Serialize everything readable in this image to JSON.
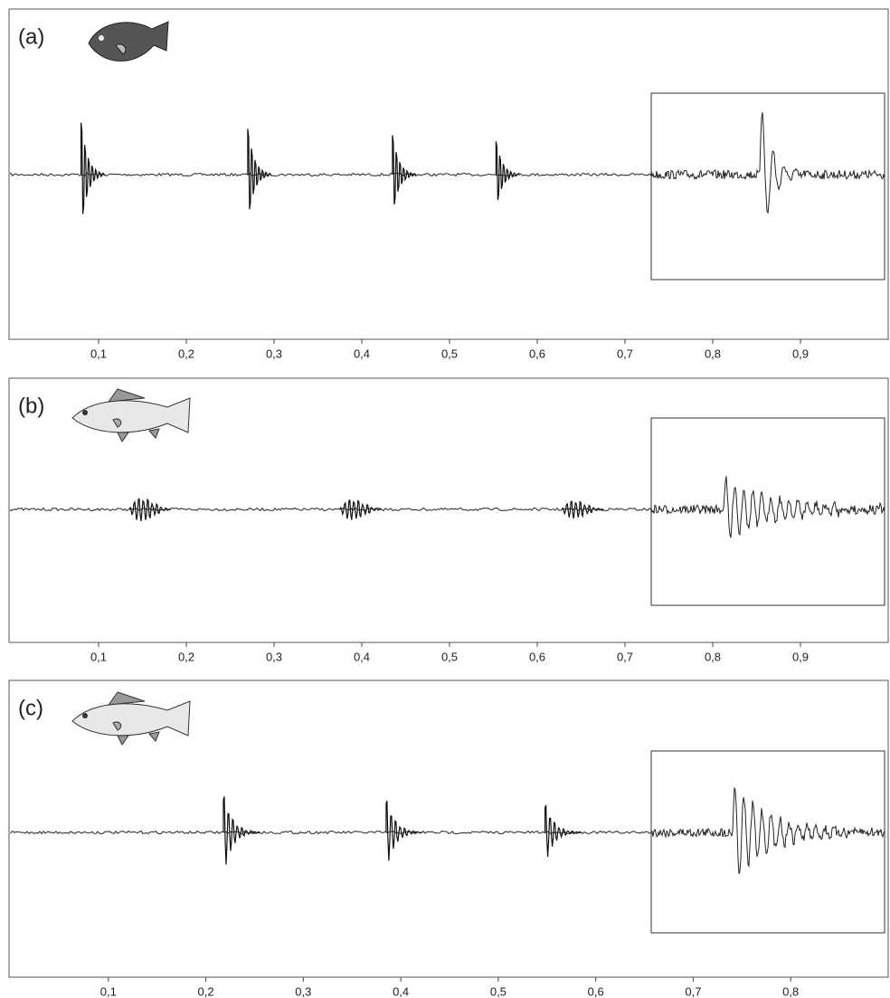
{
  "chart_data": [
    {
      "type": "waveform",
      "label": "(a)",
      "xlim": [
        0,
        1
      ],
      "xticks": [
        {
          "value": 0.1,
          "label": "0,1"
        },
        {
          "value": 0.2,
          "label": "0,2"
        },
        {
          "value": 0.3,
          "label": "0,3"
        },
        {
          "value": 0.4,
          "label": "0,4"
        },
        {
          "value": 0.5,
          "label": "0,5"
        },
        {
          "value": 0.6,
          "label": "0,6"
        },
        {
          "value": 0.7,
          "label": "0,7"
        },
        {
          "value": 0.8,
          "label": "0,8"
        },
        {
          "value": 0.9,
          "label": "0,9"
        }
      ],
      "pulses": [
        0.08,
        0.27,
        0.435,
        0.553
      ],
      "style": "click"
    },
    {
      "type": "waveform",
      "label": "(b)",
      "xlim": [
        0,
        1
      ],
      "xticks": [
        {
          "value": 0.1,
          "label": "0,1"
        },
        {
          "value": 0.2,
          "label": "0,2"
        },
        {
          "value": 0.3,
          "label": "0,3"
        },
        {
          "value": 0.4,
          "label": "0,4"
        },
        {
          "value": 0.5,
          "label": "0,5"
        },
        {
          "value": 0.6,
          "label": "0,6"
        },
        {
          "value": 0.7,
          "label": "0,7"
        },
        {
          "value": 0.8,
          "label": "0,8"
        },
        {
          "value": 0.9,
          "label": "0,9"
        }
      ],
      "pulses": [
        0.135,
        0.375,
        0.628
      ],
      "style": "burst"
    },
    {
      "type": "waveform",
      "label": "(c)",
      "xlim": [
        0,
        0.9
      ],
      "xticks": [
        {
          "value": 0.1,
          "label": "0,1"
        },
        {
          "value": 0.2,
          "label": "0,2"
        },
        {
          "value": 0.3,
          "label": "0,3"
        },
        {
          "value": 0.4,
          "label": "0,4"
        },
        {
          "value": 0.5,
          "label": "0,5"
        },
        {
          "value": 0.6,
          "label": "0,6"
        },
        {
          "value": 0.7,
          "label": "0,7"
        },
        {
          "value": 0.8,
          "label": "0,8"
        }
      ],
      "pulses": [
        0.218,
        0.385,
        0.548
      ],
      "style": "damped"
    }
  ]
}
